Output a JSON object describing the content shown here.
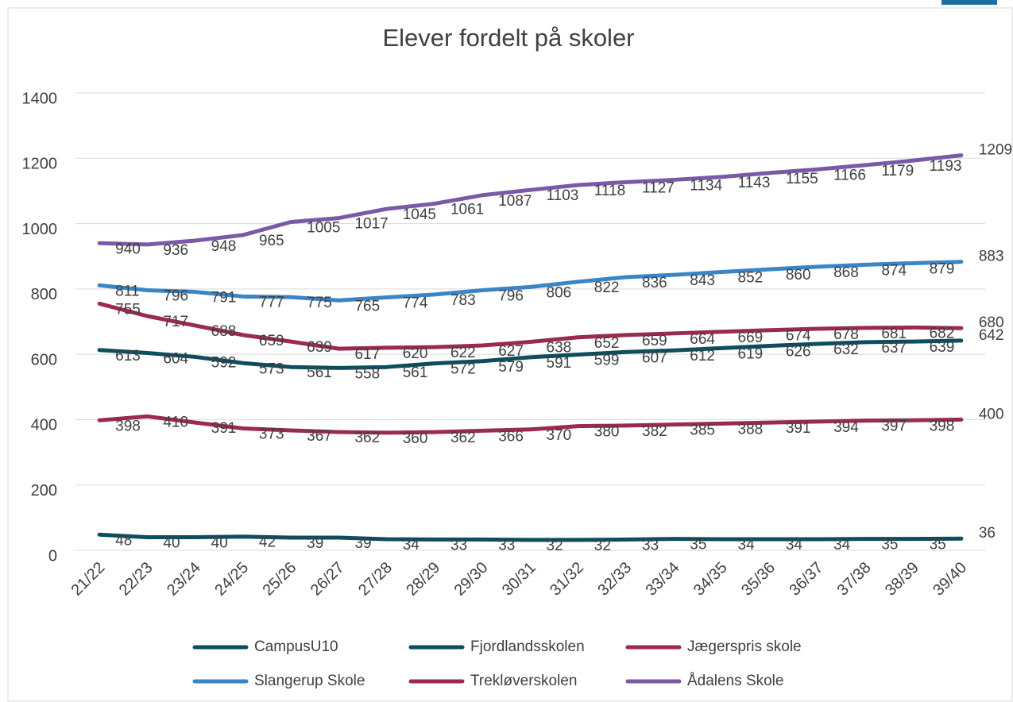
{
  "chart_data": {
    "type": "line",
    "title": "Elever fordelt på skoler",
    "categories": [
      "21/22",
      "22/23",
      "23/24",
      "24/25",
      "25/26",
      "26/27",
      "27/28",
      "28/29",
      "29/30",
      "30/31",
      "31/32",
      "32/33",
      "33/34",
      "34/35",
      "35/36",
      "36/37",
      "37/38",
      "38/39",
      "39/40"
    ],
    "ylim": [
      0,
      1400
    ],
    "yticks": [
      0,
      200,
      400,
      600,
      800,
      1000,
      1200,
      1400
    ],
    "grid": true,
    "legend": "bottom",
    "series": [
      {
        "name": "CampusU10",
        "color": "#0e4d5e",
        "values": [
          48,
          40,
          40,
          42,
          39,
          39,
          34,
          33,
          33,
          32,
          32,
          33,
          35,
          34,
          34,
          34,
          35,
          35,
          36
        ]
      },
      {
        "name": "Fjordlandsskolen",
        "color": "#0e4d5e",
        "values": [
          613,
          604,
          592,
          573,
          561,
          558,
          561,
          572,
          579,
          591,
          599,
          607,
          612,
          619,
          626,
          632,
          637,
          639,
          642
        ]
      },
      {
        "name": "Jægerspris skole",
        "color": "#9b2a4e",
        "values": [
          755,
          717,
          688,
          659,
          639,
          617,
          620,
          622,
          627,
          638,
          652,
          659,
          664,
          669,
          674,
          678,
          681,
          682,
          680
        ]
      },
      {
        "name": "Slangerup Skole",
        "color": "#3a85c6",
        "values": [
          811,
          796,
          791,
          777,
          775,
          765,
          774,
          783,
          796,
          806,
          822,
          836,
          843,
          852,
          860,
          868,
          874,
          879,
          883
        ]
      },
      {
        "name": "Trekløverskolen",
        "color": "#9b2a4e",
        "values": [
          398,
          410,
          391,
          373,
          367,
          362,
          360,
          362,
          366,
          370,
          380,
          382,
          385,
          388,
          391,
          394,
          397,
          398,
          400
        ]
      },
      {
        "name": "Ådalens Skole",
        "color": "#7b59a8",
        "values": [
          940,
          936,
          948,
          965,
          1005,
          1017,
          1045,
          1061,
          1087,
          1103,
          1118,
          1127,
          1134,
          1143,
          1155,
          1166,
          1179,
          1193,
          1209
        ]
      }
    ]
  }
}
